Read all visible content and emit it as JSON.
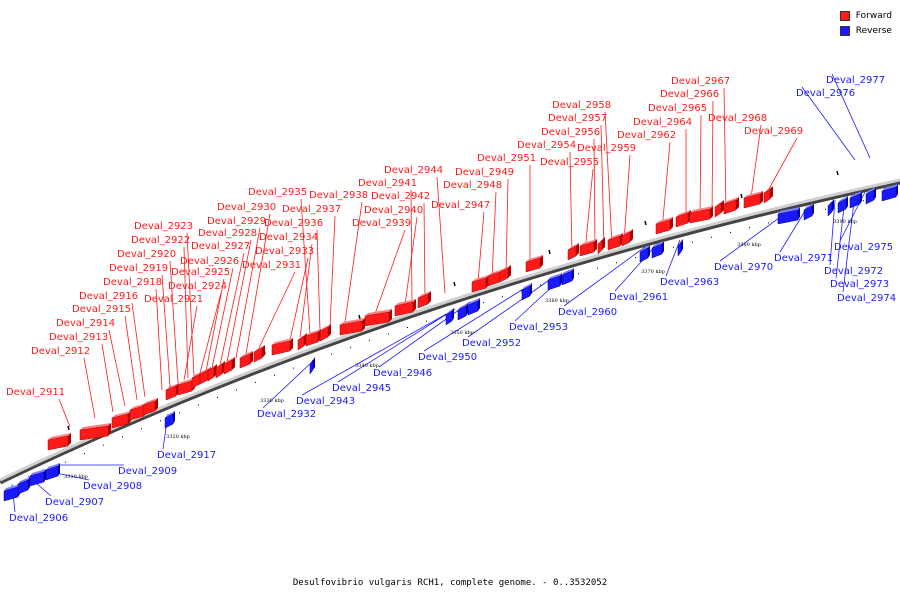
{
  "legend": {
    "forward_label": "Forward",
    "reverse_label": "Reverse",
    "forward_color": "#ff1a1a",
    "reverse_color": "#1a1aff"
  },
  "caption": "Desulfovibrio vulgaris RCH1, complete genome. - 0..3532052",
  "scale_ticks": [
    "3310 kbp",
    "3320 kbp",
    "3330 kbp",
    "3340 kbp",
    "3350 kbp",
    "3360 kbp",
    "3370 kbp",
    "3380 kbp",
    "3390 kbp"
  ],
  "forward_genes": [
    "Deval_2911",
    "Deval_2912",
    "Deval_2913",
    "Deval_2914",
    "Deval_2915",
    "Deval_2916",
    "Deval_2918",
    "Deval_2919",
    "Deval_2920",
    "Deval_2921",
    "Deval_2922",
    "Deval_2923",
    "Deval_2924",
    "Deval_2925",
    "Deval_2926",
    "Deval_2927",
    "Deval_2928",
    "Deval_2929",
    "Deval_2930",
    "Deval_2931",
    "Deval_2933",
    "Deval_2934",
    "Deval_2935",
    "Deval_2936",
    "Deval_2937",
    "Deval_2938",
    "Deval_2939",
    "Deval_2940",
    "Deval_2941",
    "Deval_2942",
    "Deval_2944",
    "Deval_2947",
    "Deval_2948",
    "Deval_2949",
    "Deval_2951",
    "Deval_2954",
    "Deval_2955",
    "Deval_2956",
    "Deval_2957",
    "Deval_2958",
    "Deval_2959",
    "Deval_2962",
    "Deval_2964",
    "Deval_2965",
    "Deval_2966",
    "Deval_2967",
    "Deval_2968",
    "Deval_2969"
  ],
  "reverse_genes": [
    "Deval_2906",
    "Deval_2907",
    "Deval_2908",
    "Deval_2909",
    "Deval_2917",
    "Deval_2932",
    "Deval_2943",
    "Deval_2945",
    "Deval_2946",
    "Deval_2950",
    "Deval_2952",
    "Deval_2953",
    "Deval_2960",
    "Deval_2961",
    "Deval_2963",
    "Deval_2970",
    "Deval_2971",
    "Deval_2972",
    "Deval_2973",
    "Deval_2974",
    "Deval_2975",
    "Deval_2976",
    "Deval_2977"
  ]
}
